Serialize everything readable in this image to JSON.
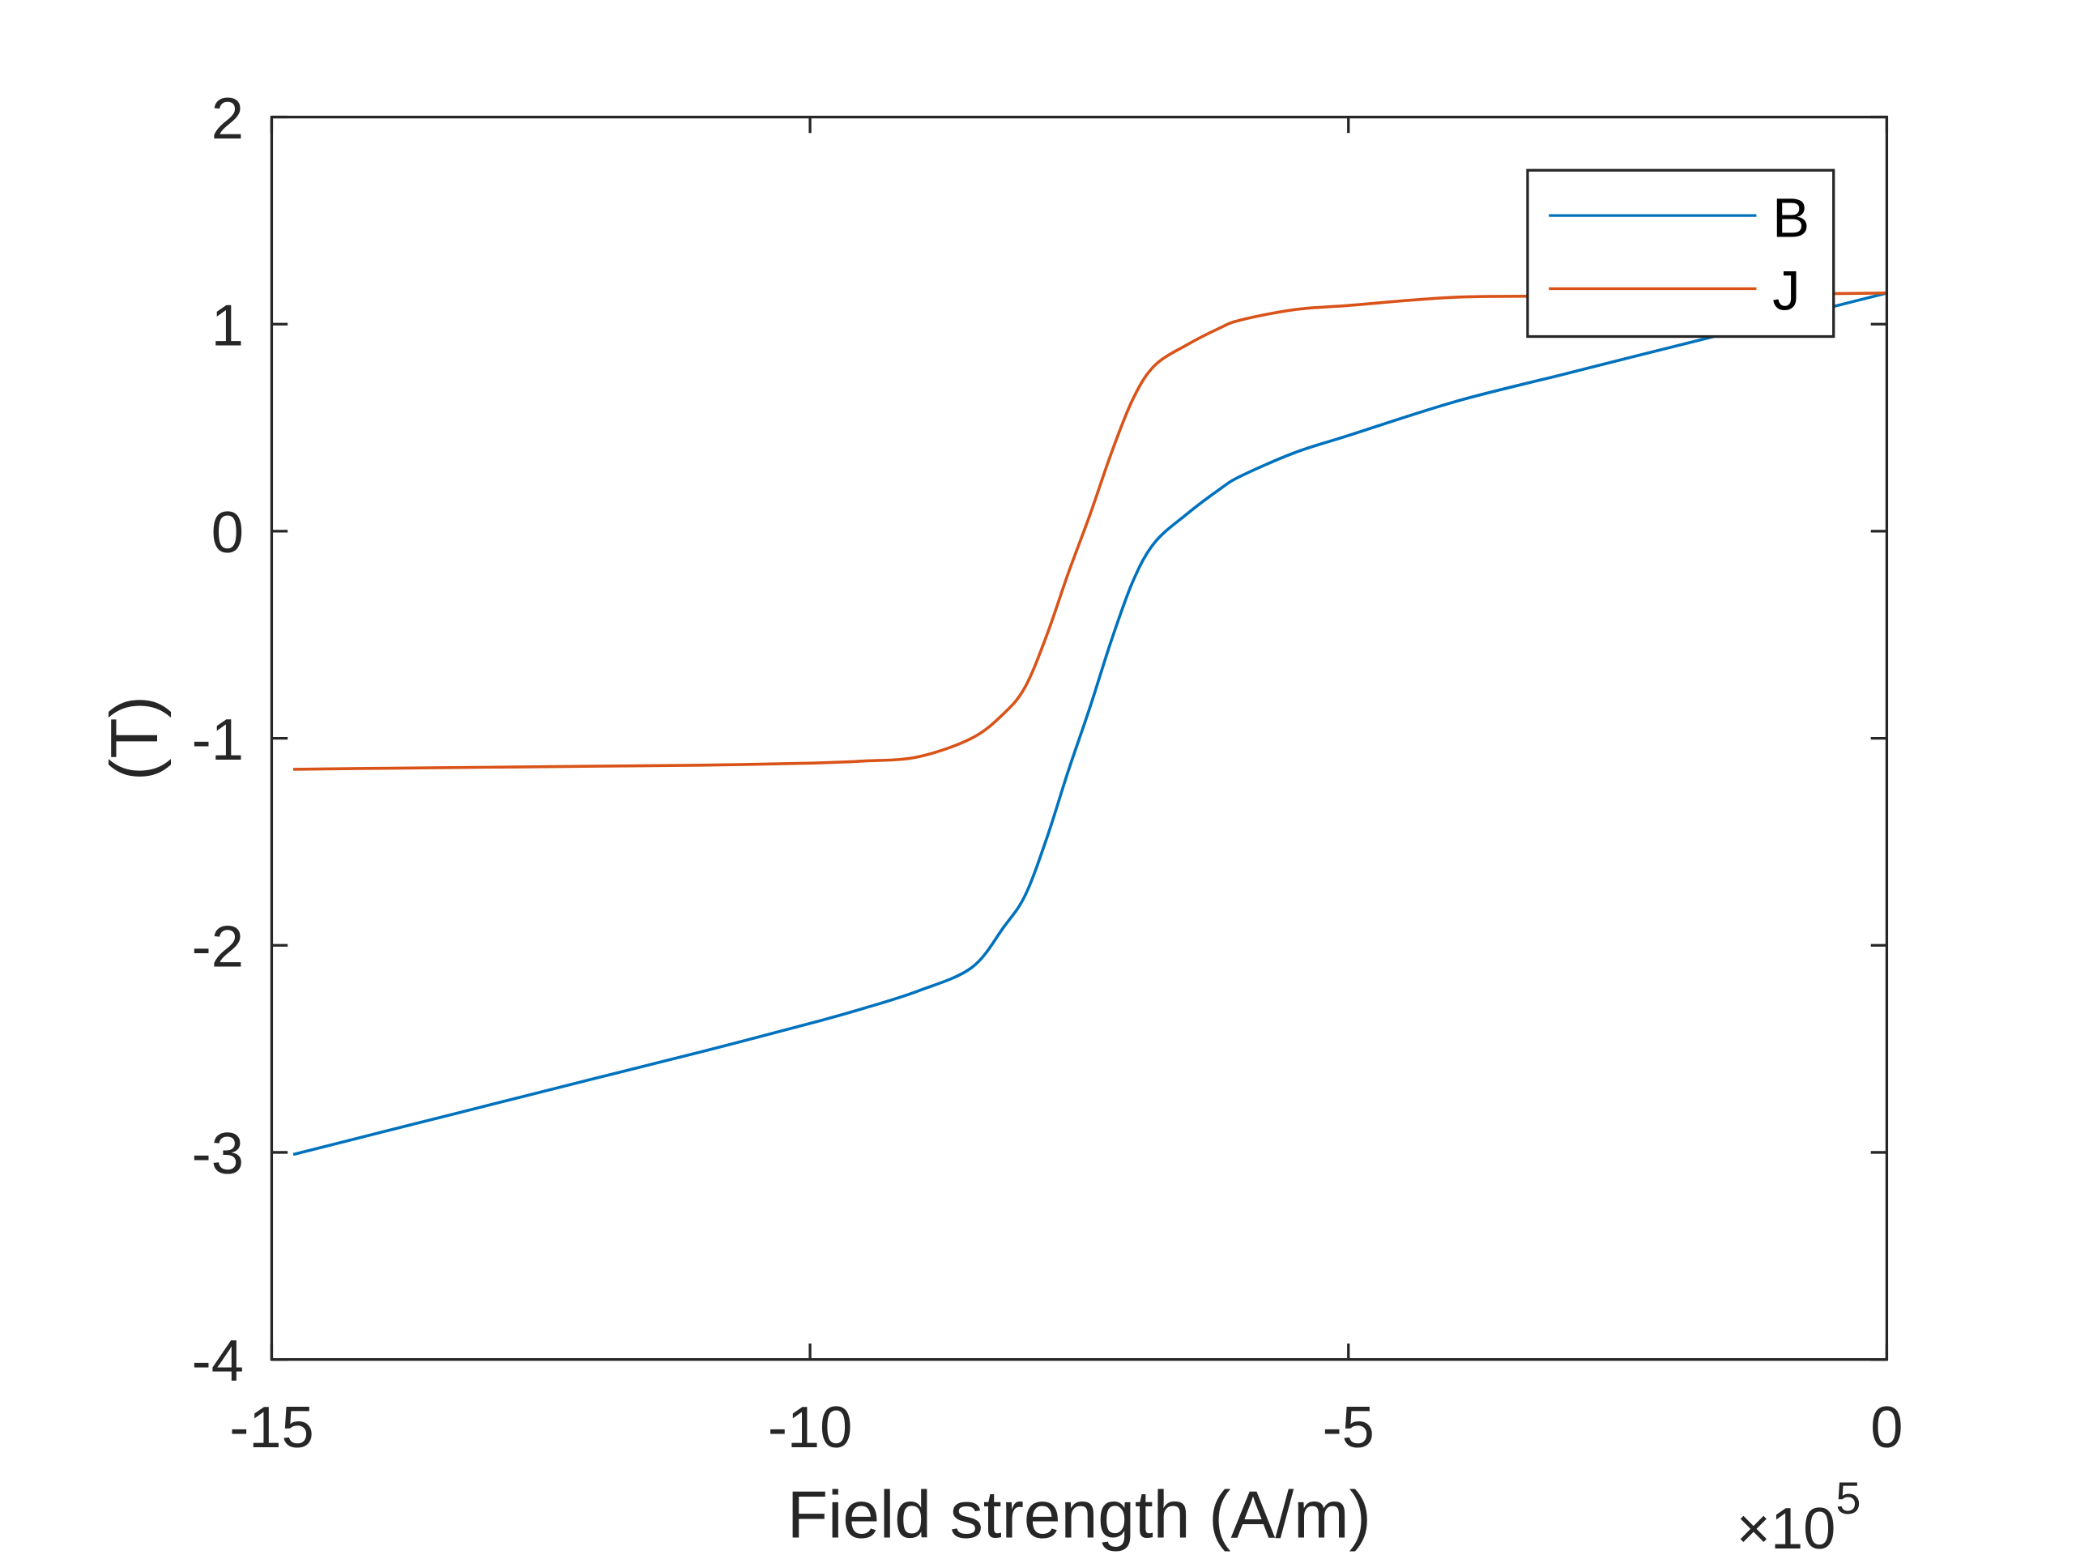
{
  "chart_data": {
    "type": "line",
    "title": "",
    "xlabel": "Field strength (A/m)",
    "ylabel": "(T)",
    "x_multiplier_label": "×10",
    "x_multiplier_exponent": "5",
    "xlim": [
      -15,
      0
    ],
    "ylim": [
      -4,
      2
    ],
    "xticks": [
      -15,
      -10,
      -5,
      0
    ],
    "yticks": [
      2,
      1,
      0,
      -1,
      -2,
      -3,
      -4
    ],
    "grid": false,
    "legend_position": "top-right",
    "x": [
      -14.8,
      -14,
      -13,
      -12,
      -11,
      -10,
      -9.5,
      -9,
      -8.5,
      -8.2,
      -8,
      -7.8,
      -7.6,
      -7.4,
      -7.2,
      -7,
      -6.8,
      -6.5,
      -6.2,
      -6,
      -5.5,
      -5,
      -4,
      -3,
      -2,
      -1,
      0
    ],
    "series": [
      {
        "name": "B",
        "color": "#0072BD",
        "values": [
          -3.01,
          -2.905,
          -2.774,
          -2.643,
          -2.513,
          -2.377,
          -2.304,
          -2.221,
          -2.108,
          -1.911,
          -1.756,
          -1.48,
          -1.155,
          -0.85,
          -0.525,
          -0.24,
          -0.055,
          0.083,
          0.201,
          0.266,
          0.379,
          0.462,
          0.627,
          0.758,
          0.889,
          1.019,
          1.15
        ]
      },
      {
        "name": "J",
        "color": "#D95319",
        "values": [
          -1.15,
          -1.145,
          -1.14,
          -1.135,
          -1.13,
          -1.12,
          -1.11,
          -1.09,
          -1.0,
          -0.88,
          -0.75,
          -0.5,
          -0.2,
          0.08,
          0.38,
          0.64,
          0.8,
          0.9,
          0.98,
          1.02,
          1.07,
          1.09,
          1.13,
          1.135,
          1.14,
          1.145,
          1.15
        ]
      }
    ]
  }
}
